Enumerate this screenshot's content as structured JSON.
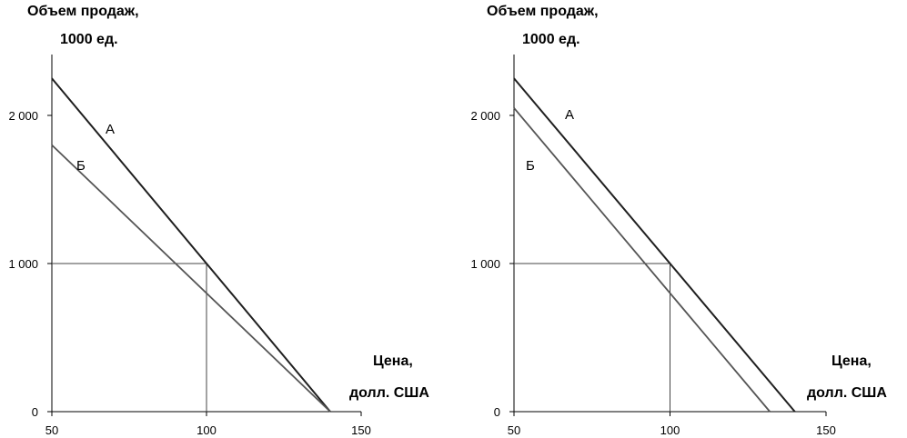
{
  "chart_data": [
    {
      "type": "line",
      "ylabel_line1": "Объем продаж,",
      "ylabel_line2": "1000 ед.",
      "xlabel_line1": "Цена,",
      "xlabel_line2": "долл. США",
      "xlim": [
        50,
        150
      ],
      "ylim": [
        0,
        2000
      ],
      "xticks": [
        "50",
        "100",
        "150"
      ],
      "yticks": [
        "0",
        "1 000",
        "2 000"
      ],
      "series": [
        {
          "name": "А",
          "color": "#1f1f1f",
          "points": [
            [
              50,
              2250
            ],
            [
              140,
              0
            ]
          ]
        },
        {
          "name": "Б",
          "color": "#555555",
          "points": [
            [
              50,
              1800
            ],
            [
              140,
              0
            ]
          ]
        }
      ],
      "reference_point": [
        100,
        1000
      ]
    },
    {
      "type": "line",
      "ylabel_line1": "Объем продаж,",
      "ylabel_line2": "1000 ед.",
      "xlabel_line1": "Цена,",
      "xlabel_line2": "долл. США",
      "xlim": [
        50,
        150
      ],
      "ylim": [
        0,
        2000
      ],
      "xticks": [
        "50",
        "100",
        "150"
      ],
      "yticks": [
        "0",
        "1 000",
        "2 000"
      ],
      "series": [
        {
          "name": "А",
          "color": "#1f1f1f",
          "points": [
            [
              50,
              2250
            ],
            [
              140,
              0
            ]
          ]
        },
        {
          "name": "Б",
          "color": "#555555",
          "points": [
            [
              50,
              2050
            ],
            [
              132,
              0
            ]
          ]
        }
      ],
      "reference_point": [
        100,
        1000
      ]
    }
  ]
}
